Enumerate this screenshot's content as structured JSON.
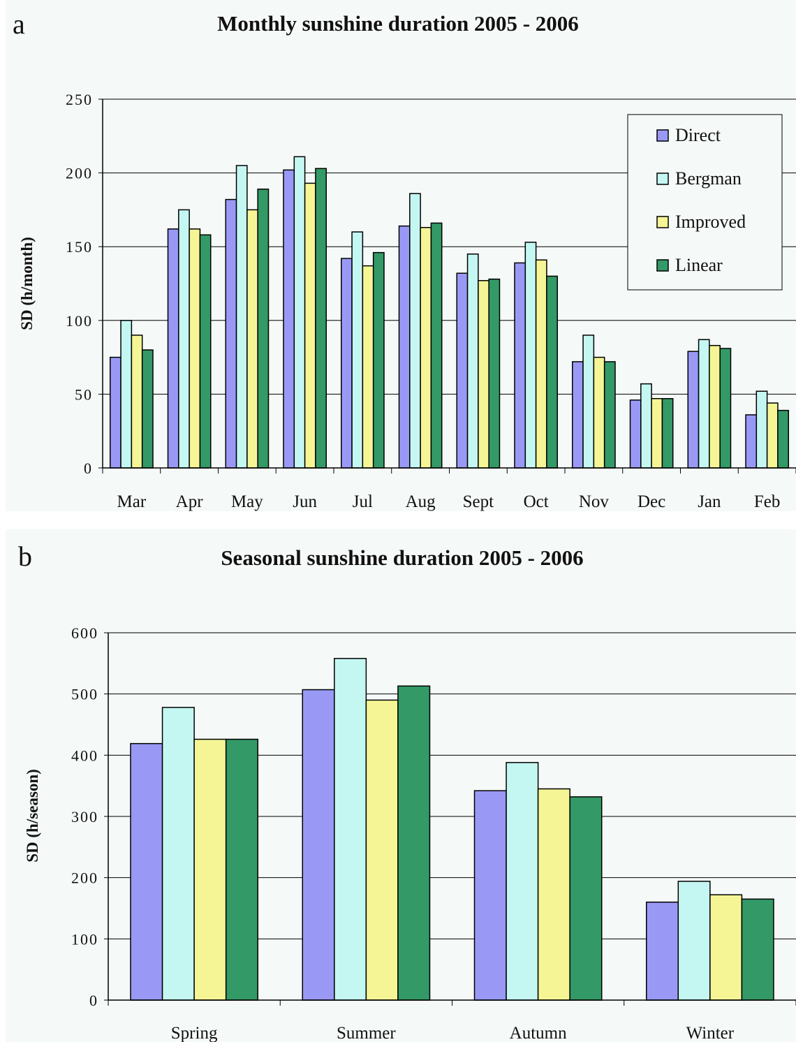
{
  "chart_data": [
    {
      "panel_label": "a",
      "type": "bar",
      "title": "Monthly sunshine duration 2005 - 2006",
      "xlabel": "",
      "ylabel": "SD (h/month)",
      "ylim": [
        0,
        250
      ],
      "yticks": [
        "0",
        "50",
        "100",
        "150",
        "200",
        "250"
      ],
      "grid": true,
      "legend_position": "top-right",
      "categories": [
        "Mar",
        "Apr",
        "May",
        "Jun",
        "Jul",
        "Aug",
        "Sept",
        "Oct",
        "Nov",
        "Dec",
        "Jan",
        "Feb"
      ],
      "series": [
        {
          "name": "Direct",
          "color": "#9999f5",
          "values": [
            75,
            162,
            182,
            202,
            142,
            164,
            132,
            139,
            72,
            46,
            79,
            36
          ]
        },
        {
          "name": "Bergman",
          "color": "#c4f7f2",
          "values": [
            100,
            175,
            205,
            211,
            160,
            186,
            145,
            153,
            90,
            57,
            87,
            52
          ]
        },
        {
          "name": "Improved",
          "color": "#f5f595",
          "values": [
            90,
            162,
            175,
            193,
            137,
            163,
            127,
            141,
            75,
            47,
            83,
            44
          ]
        },
        {
          "name": "Linear",
          "color": "#339966",
          "values": [
            80,
            158,
            189,
            203,
            146,
            166,
            128,
            130,
            72,
            47,
            81,
            39
          ]
        }
      ]
    },
    {
      "panel_label": "b",
      "type": "bar",
      "title": "Seasonal sunshine duration 2005 - 2006",
      "xlabel": "",
      "ylabel": "SD (h/season)",
      "ylim": [
        0,
        600
      ],
      "yticks": [
        "0",
        "100",
        "200",
        "300",
        "400",
        "500",
        "600"
      ],
      "grid": true,
      "categories": [
        "Spring",
        "Summer",
        "Autumn",
        "Winter"
      ],
      "series": [
        {
          "name": "Direct",
          "color": "#9999f5",
          "values": [
            419,
            507,
            342,
            160
          ]
        },
        {
          "name": "Bergman",
          "color": "#c4f7f2",
          "values": [
            478,
            558,
            388,
            194
          ]
        },
        {
          "name": "Improved",
          "color": "#f5f595",
          "values": [
            426,
            490,
            345,
            172
          ]
        },
        {
          "name": "Linear",
          "color": "#339966",
          "values": [
            426,
            513,
            332,
            165
          ]
        }
      ]
    }
  ]
}
